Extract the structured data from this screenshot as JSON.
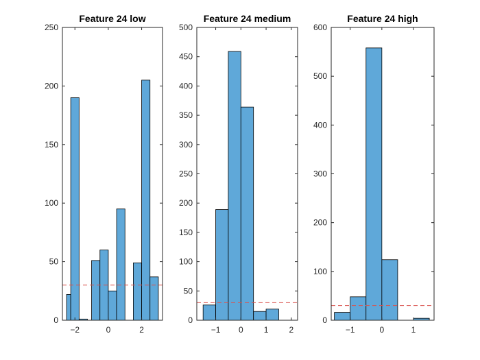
{
  "colors": {
    "bar_fill": "#5fa8d9",
    "reference_line": "#d9534f"
  },
  "chart_data": [
    {
      "type": "bar",
      "subtype": "histogram",
      "title": "Feature 24 low",
      "bin_width": 0.5,
      "bins": [
        {
          "x0": -2.5,
          "x1": -2.25,
          "value": 22
        },
        {
          "x0": -2.25,
          "x1": -1.75,
          "value": 190
        },
        {
          "x0": -1.75,
          "x1": -1.25,
          "value": 1
        },
        {
          "x0": -1.0,
          "x1": -0.5,
          "value": 51
        },
        {
          "x0": -0.5,
          "x1": 0.0,
          "value": 60
        },
        {
          "x0": 0.0,
          "x1": 0.5,
          "value": 25
        },
        {
          "x0": 0.5,
          "x1": 1.0,
          "value": 95
        },
        {
          "x0": 1.5,
          "x1": 2.0,
          "value": 49
        },
        {
          "x0": 2.0,
          "x1": 2.5,
          "value": 205
        },
        {
          "x0": 2.5,
          "x1": 3.0,
          "value": 37
        }
      ],
      "xlim": [
        -2.75,
        3.25
      ],
      "ylim": [
        0,
        250
      ],
      "xticks": [
        -2,
        0,
        2
      ],
      "yticks": [
        0,
        50,
        100,
        150,
        200,
        250
      ],
      "reference_line": 30
    },
    {
      "type": "bar",
      "subtype": "histogram",
      "title": "Feature 24 medium",
      "bin_width": 0.5,
      "bins": [
        {
          "x0": -1.5,
          "x1": -1.0,
          "value": 26
        },
        {
          "x0": -1.0,
          "x1": -0.5,
          "value": 189
        },
        {
          "x0": -0.5,
          "x1": 0.0,
          "value": 459
        },
        {
          "x0": 0.0,
          "x1": 0.5,
          "value": 364
        },
        {
          "x0": 0.5,
          "x1": 1.0,
          "value": 15
        },
        {
          "x0": 1.0,
          "x1": 1.5,
          "value": 19
        }
      ],
      "xlim": [
        -1.75,
        2.25
      ],
      "ylim": [
        0,
        500
      ],
      "xticks": [
        -1,
        0,
        1,
        2
      ],
      "yticks": [
        0,
        50,
        100,
        150,
        200,
        250,
        300,
        350,
        400,
        450,
        500
      ],
      "reference_line": 30
    },
    {
      "type": "bar",
      "subtype": "histogram",
      "title": "Feature 24 high",
      "bin_width": 0.5,
      "bins": [
        {
          "x0": -1.5,
          "x1": -1.0,
          "value": 16
        },
        {
          "x0": -1.0,
          "x1": -0.5,
          "value": 48
        },
        {
          "x0": -0.5,
          "x1": 0.0,
          "value": 558
        },
        {
          "x0": 0.0,
          "x1": 0.5,
          "value": 124
        },
        {
          "x0": 1.0,
          "x1": 1.5,
          "value": 4
        }
      ],
      "xlim": [
        -1.6,
        1.65
      ],
      "ylim": [
        0,
        600
      ],
      "xticks": [
        -1,
        0,
        1
      ],
      "yticks": [
        0,
        100,
        200,
        300,
        400,
        500,
        600
      ],
      "reference_line": 30
    }
  ]
}
